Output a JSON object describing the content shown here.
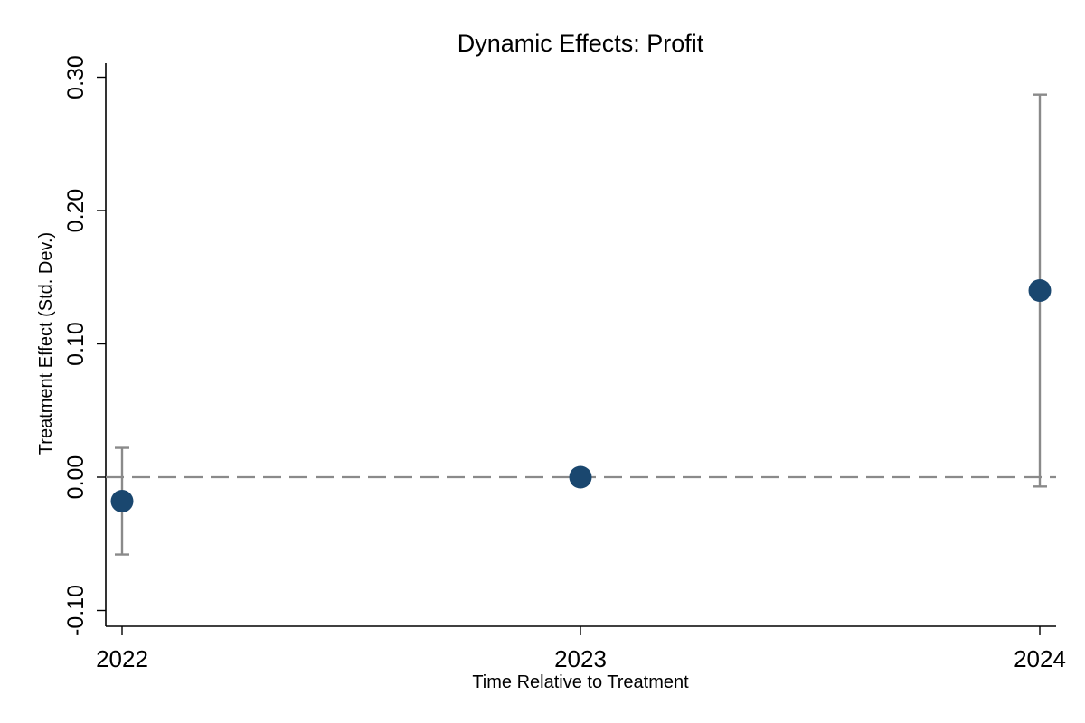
{
  "chart_data": {
    "type": "scatter",
    "title": "Dynamic Effects: Profit",
    "xlabel": "Time Relative to Treatment",
    "ylabel": "Treatment Effect (Std. Dev.)",
    "categories": [
      "2022",
      "2023",
      "2024"
    ],
    "series": [
      {
        "values": [
          -0.018,
          0.0,
          0.14
        ],
        "ci_lower": [
          -0.058,
          0.0,
          -0.007
        ],
        "ci_upper": [
          0.022,
          0.0,
          0.287
        ]
      }
    ],
    "ylim": [
      -0.11,
      0.31
    ],
    "yticks": [
      "-0.10",
      "0.00",
      "0.10",
      "0.20",
      "0.30"
    ],
    "reference_line": 0.0,
    "grid": false,
    "colors": {
      "point": "#1a476f",
      "ci": "#8a8a8a",
      "reference": "#8a8a8a"
    }
  }
}
